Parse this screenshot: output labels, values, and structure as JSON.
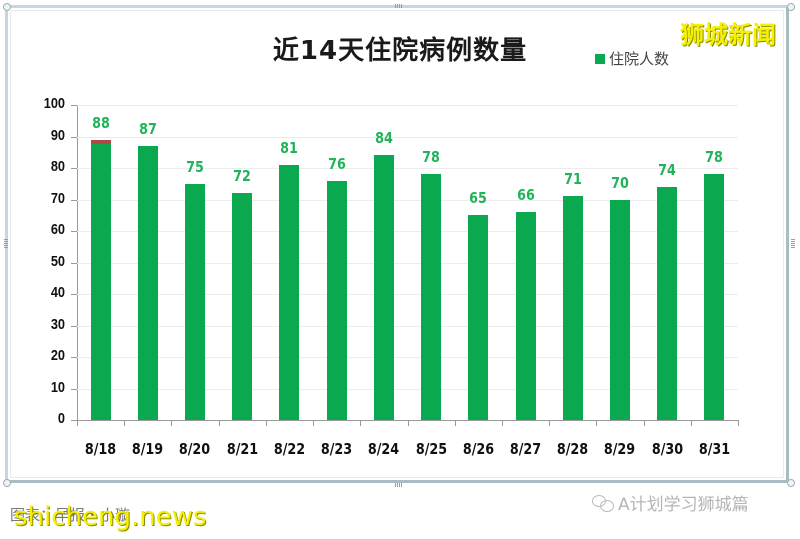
{
  "title": "近14天住院病例数量",
  "brand_watermark": "狮城新闻",
  "legend": {
    "label": "住院人数",
    "color": "#0aa84f"
  },
  "source_text": "图表：早报・小璇",
  "url_watermark": "shicheng.news",
  "wechat_caption": "A计划学习狮城篇",
  "colors": {
    "bar": "#0aa84f",
    "bar_cap": "#b04848",
    "value_label": "#22b35a"
  },
  "chart_data": {
    "type": "bar",
    "title": "近14天住院病例数量",
    "xlabel": "",
    "ylabel": "",
    "ylim": [
      0,
      100
    ],
    "yticks": [
      0,
      10,
      20,
      30,
      40,
      50,
      60,
      70,
      80,
      90,
      100
    ],
    "grid": true,
    "legend_position": "top-right",
    "categories": [
      "8/18",
      "8/19",
      "8/20",
      "8/21",
      "8/22",
      "8/23",
      "8/24",
      "8/25",
      "8/26",
      "8/27",
      "8/28",
      "8/29",
      "8/30",
      "8/31"
    ],
    "series": [
      {
        "name": "住院人数",
        "values": [
          88,
          87,
          75,
          72,
          81,
          76,
          84,
          78,
          65,
          66,
          71,
          70,
          74,
          78
        ]
      }
    ],
    "data_labels": [
      "88",
      "87",
      "75",
      "72",
      "81",
      "76",
      "84",
      "78",
      "65",
      "66",
      "71",
      "70",
      "74",
      "78"
    ],
    "annotations": [
      {
        "category": "8/18",
        "note": "small red segment at top of bar (~1 unit)"
      }
    ]
  }
}
